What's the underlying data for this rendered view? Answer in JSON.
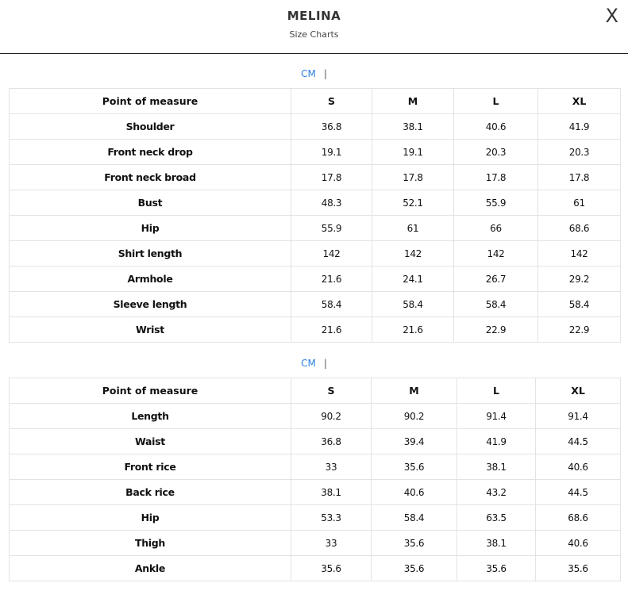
{
  "header": {
    "title": "MELINA",
    "subtitle": "Size Charts",
    "close_label": "X"
  },
  "tables": [
    {
      "unit": "CM",
      "separator": "|",
      "columns": [
        "Point of measure",
        "S",
        "M",
        "L",
        "XL"
      ],
      "rows": [
        [
          "Shoulder",
          "36.8",
          "38.1",
          "40.6",
          "41.9"
        ],
        [
          "Front neck drop",
          "19.1",
          "19.1",
          "20.3",
          "20.3"
        ],
        [
          "Front neck broad",
          "17.8",
          "17.8",
          "17.8",
          "17.8"
        ],
        [
          "Bust",
          "48.3",
          "52.1",
          "55.9",
          "61"
        ],
        [
          "Hip",
          "55.9",
          "61",
          "66",
          "68.6"
        ],
        [
          "Shirt length",
          "142",
          "142",
          "142",
          "142"
        ],
        [
          "Armhole",
          "21.6",
          "24.1",
          "26.7",
          "29.2"
        ],
        [
          "Sleeve length",
          "58.4",
          "58.4",
          "58.4",
          "58.4"
        ],
        [
          "Wrist",
          "21.6",
          "21.6",
          "22.9",
          "22.9"
        ]
      ]
    },
    {
      "unit": "CM",
      "separator": "|",
      "columns": [
        "Point of measure",
        "S",
        "M",
        "L",
        "XL"
      ],
      "rows": [
        [
          "Length",
          "90.2",
          "90.2",
          "91.4",
          "91.4"
        ],
        [
          "Waist",
          "36.8",
          "39.4",
          "41.9",
          "44.5"
        ],
        [
          "Front rice",
          "33",
          "35.6",
          "38.1",
          "40.6"
        ],
        [
          "Back rice",
          "38.1",
          "40.6",
          "43.2",
          "44.5"
        ],
        [
          "Hip",
          "53.3",
          "58.4",
          "63.5",
          "68.6"
        ],
        [
          "Thigh",
          "33",
          "35.6",
          "38.1",
          "40.6"
        ],
        [
          "Ankle",
          "35.6",
          "35.6",
          "35.6",
          "35.6"
        ]
      ]
    }
  ]
}
